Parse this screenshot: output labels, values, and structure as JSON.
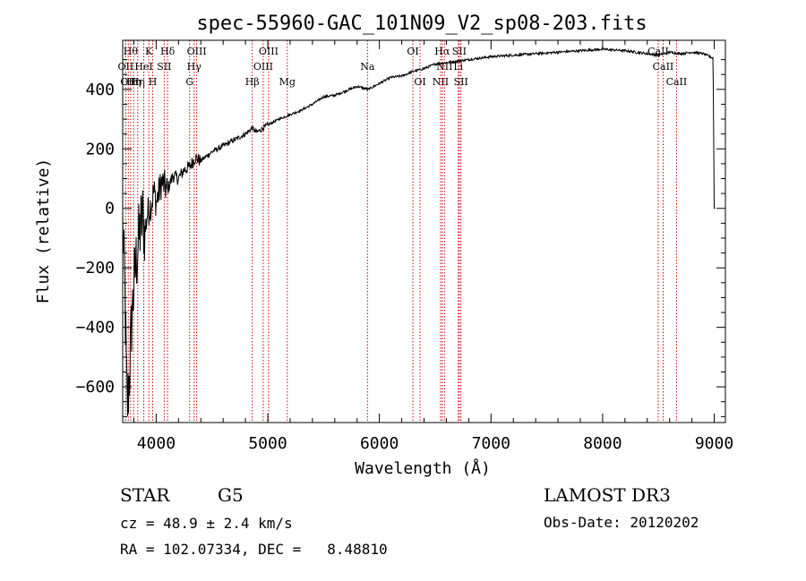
{
  "chart_data": {
    "type": "line",
    "title": "spec-55960-GAC_101N09_V2_sp08-203.fits",
    "xlabel": "Wavelength (Å)",
    "ylabel": "Flux (relative)",
    "xlim": [
      3700,
      9100
    ],
    "ylim": [
      -720,
      565
    ],
    "x_ticks": [
      4000,
      5000,
      6000,
      7000,
      8000,
      9000
    ],
    "y_ticks": [
      -600,
      -400,
      -200,
      0,
      200,
      400
    ],
    "grid": false,
    "series": [
      {
        "name": "flux",
        "x": [
          3700,
          3720,
          3740,
          3760,
          3780,
          3800,
          3820,
          3840,
          3860,
          3880,
          3900,
          3920,
          3940,
          3960,
          3980,
          4000,
          4050,
          4100,
          4150,
          4200,
          4250,
          4300,
          4350,
          4400,
          4500,
          4600,
          4700,
          4800,
          4860,
          4900,
          5000,
          5100,
          5200,
          5300,
          5400,
          5500,
          5600,
          5700,
          5800,
          5900,
          6000,
          6100,
          6200,
          6300,
          6400,
          6500,
          6600,
          6700,
          6800,
          6900,
          7000,
          7200,
          7400,
          7600,
          7800,
          8000,
          8200,
          8400,
          8500,
          8600,
          8700,
          8800,
          8900,
          8990,
          9000,
          9010
        ],
        "y": [
          -50,
          -300,
          -680,
          -560,
          -380,
          -260,
          -180,
          -120,
          -60,
          -30,
          -80,
          -20,
          0,
          20,
          60,
          20,
          90,
          60,
          110,
          100,
          130,
          140,
          170,
          160,
          190,
          210,
          230,
          250,
          270,
          255,
          280,
          300,
          315,
          330,
          350,
          375,
          380,
          395,
          410,
          400,
          420,
          440,
          445,
          460,
          470,
          485,
          490,
          495,
          500,
          505,
          510,
          515,
          520,
          525,
          530,
          535,
          530,
          520,
          515,
          525,
          520,
          525,
          520,
          505,
          0,
          0
        ]
      }
    ],
    "lines": [
      {
        "wavelength": 3727,
        "label": "OII",
        "row": 2
      },
      {
        "wavelength": 3750,
        "label": "OII",
        "row": 3
      },
      {
        "wavelength": 3771,
        "label": "Hθ",
        "row": 1
      },
      {
        "wavelength": 3798,
        "label": "Hη",
        "row": 3
      },
      {
        "wavelength": 3835,
        "label": "Hη",
        "row": 3
      },
      {
        "wavelength": 3889,
        "label": "HeI",
        "row": 2
      },
      {
        "wavelength": 3934,
        "label": "K",
        "row": 1
      },
      {
        "wavelength": 3969,
        "label": "H",
        "row": 3
      },
      {
        "wavelength": 4072,
        "label": "SII",
        "row": 2
      },
      {
        "wavelength": 4102,
        "label": "Hδ",
        "row": 1
      },
      {
        "wavelength": 4300,
        "label": "G",
        "row": 3
      },
      {
        "wavelength": 4340,
        "label": "Hγ",
        "row": 2
      },
      {
        "wavelength": 4363,
        "label": "OIII",
        "row": 1
      },
      {
        "wavelength": 4861,
        "label": "Hβ",
        "row": 3
      },
      {
        "wavelength": 4959,
        "label": "OIII",
        "row": 2
      },
      {
        "wavelength": 5007,
        "label": "OIII",
        "row": 1
      },
      {
        "wavelength": 5175,
        "label": "Mg",
        "row": 3
      },
      {
        "wavelength": 5893,
        "label": "Na",
        "row": 2
      },
      {
        "wavelength": 6300,
        "label": "OI",
        "row": 1
      },
      {
        "wavelength": 6364,
        "label": "OI",
        "row": 3
      },
      {
        "wavelength": 6548,
        "label": "NII",
        "row": 3
      },
      {
        "wavelength": 6563,
        "label": "Hα",
        "row": 1
      },
      {
        "wavelength": 6583,
        "label": "NII",
        "row": 2
      },
      {
        "wavelength": 6707,
        "label": "Li",
        "row": 2
      },
      {
        "wavelength": 6716,
        "label": "SII",
        "row": 1
      },
      {
        "wavelength": 6731,
        "label": "SII",
        "row": 3
      },
      {
        "wavelength": 8498,
        "label": "CaII",
        "row": 1
      },
      {
        "wavelength": 8542,
        "label": "CaII",
        "row": 2
      },
      {
        "wavelength": 8662,
        "label": "CaII",
        "row": 3
      }
    ]
  },
  "info": {
    "object_class": "STAR",
    "subclass": "G5",
    "survey": "LAMOST DR3",
    "redshift_text": "cz = 48.9 ± 2.4 km/s",
    "obs_date_text": "Obs-Date: 20120202",
    "coords_text": "RA = 102.07334, DEC =   8.48810"
  },
  "colors": {
    "spectrum": "#000000",
    "line_markers": "#cc0000",
    "axes": "#000000",
    "background": "#ffffff"
  }
}
